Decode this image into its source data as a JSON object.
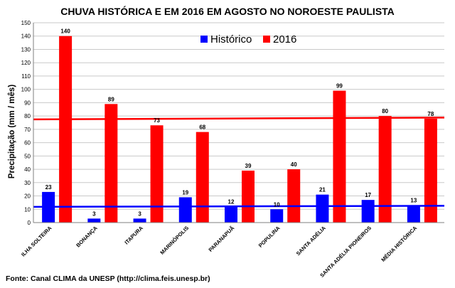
{
  "chart_data": {
    "type": "bar",
    "title": "CHUVA HISTÓRICA E EM 2016 EM AGOSTO NO NOROESTE PAULISTA",
    "ylabel": "Precipitação (mm / mês)",
    "xlabel": "",
    "ylim": [
      0,
      150
    ],
    "yticks": [
      0,
      10,
      20,
      30,
      40,
      50,
      60,
      70,
      80,
      90,
      100,
      110,
      120,
      130,
      140,
      150
    ],
    "grid": true,
    "legend_position": "top-center",
    "categories": [
      "ILHA SOLTEIRA",
      "BONANÇA",
      "ITAPURA",
      "MARINÓPOLIS",
      "PARANAPUÃ",
      "POPULINA",
      "SANTA ADÉLIA",
      "SANTA ADÉLIA PIONEIROS",
      "MÉDIA HISTÓRICA"
    ],
    "series": [
      {
        "name": "Histórico",
        "color": "#0000ff",
        "values": [
          23,
          3,
          3,
          19,
          12,
          10,
          21,
          17,
          13
        ]
      },
      {
        "name": "2016",
        "color": "#ff0000",
        "values": [
          140,
          89,
          73,
          68,
          39,
          40,
          99,
          80,
          78
        ]
      }
    ],
    "reference_lines": [
      {
        "series": "Histórico",
        "color": "#0000ff",
        "start": 11.8,
        "end": 12.6
      },
      {
        "series": "2016",
        "color": "#ff0000",
        "start": 77.5,
        "end": 78.8
      }
    ]
  },
  "source_text": "Fonte:  Canal CLIMA da UNESP (http://clima.feis.unesp.br)"
}
